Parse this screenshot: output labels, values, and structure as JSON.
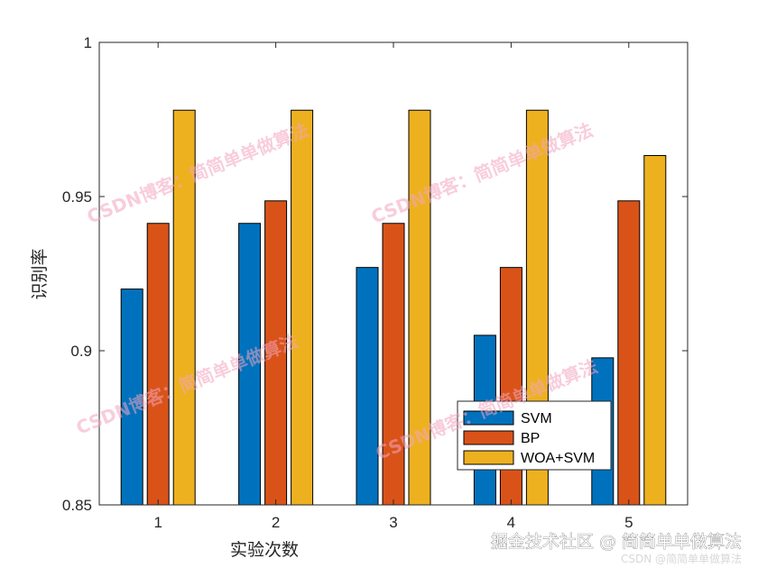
{
  "chart_data": {
    "type": "bar",
    "categories": [
      "1",
      "2",
      "3",
      "4",
      "5"
    ],
    "series": [
      {
        "name": "SVM",
        "color": "#0072BD",
        "values": [
          0.92,
          0.9413,
          0.927,
          0.905,
          0.8977
        ]
      },
      {
        "name": "BP",
        "color": "#D95319",
        "values": [
          0.9413,
          0.9486,
          0.9413,
          0.927,
          0.9486
        ]
      },
      {
        "name": "WOA+SVM",
        "color": "#EDB120",
        "values": [
          0.978,
          0.978,
          0.978,
          0.978,
          0.9633
        ]
      }
    ],
    "xlabel": "实验次数",
    "ylabel": "识别率",
    "ylim": [
      0.85,
      1
    ],
    "yticks": [
      "0.85",
      "0.9",
      "0.95",
      "1"
    ],
    "grid": false,
    "legend_position": "bottom-right"
  },
  "watermark": {
    "text": "CSDN博客：简简单单做算法"
  },
  "footer": {
    "main": "掘金技术社区 @ 简简单单做算法",
    "small": "CSDN @简简单单做算法"
  }
}
